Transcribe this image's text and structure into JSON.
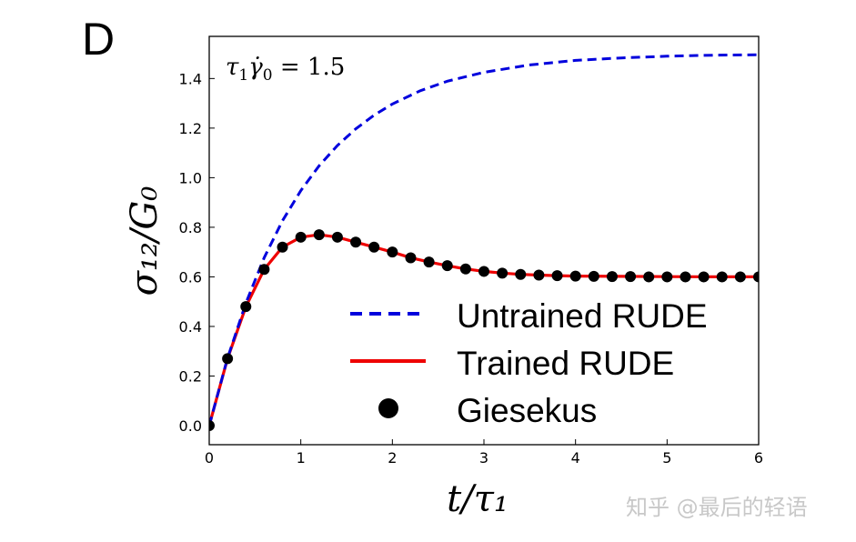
{
  "panel_label": "D",
  "watermark": "知乎 @最后的轻语",
  "chart_data": {
    "type": "line",
    "title": "",
    "annotation": "τ₁γ̇₀ = 1.5",
    "xlabel": "t/τ₁",
    "ylabel": "σ₁₂/G₀",
    "xlim": [
      0,
      6
    ],
    "ylim": [
      -0.077,
      1.57
    ],
    "xticks": [
      0,
      1,
      2,
      3,
      4,
      5,
      6
    ],
    "xtick_labels": [
      "0",
      "1",
      "2",
      "3",
      "4",
      "5",
      "6"
    ],
    "yticks": [
      0.0,
      0.2,
      0.4,
      0.6,
      0.8,
      1.0,
      1.2,
      1.4
    ],
    "ytick_labels": [
      "0.0",
      "0.2",
      "0.4",
      "0.6",
      "0.8",
      "1.0",
      "1.2",
      "1.4"
    ],
    "grid": false,
    "legend_position": "center-right",
    "colors": {
      "untrained": "#0000dd",
      "trained": "#ee0000",
      "giesekus": "#000000"
    },
    "series": [
      {
        "name": "Untrained RUDE",
        "style": "dashed",
        "x": [
          0,
          0.2,
          0.4,
          0.6,
          0.8,
          1.0,
          1.2,
          1.4,
          1.6,
          1.8,
          2.0,
          2.3,
          2.6,
          3.0,
          3.5,
          4.0,
          4.5,
          5.0,
          5.5,
          6.0
        ],
        "y": [
          0,
          0.272,
          0.494,
          0.677,
          0.826,
          0.948,
          1.048,
          1.13,
          1.197,
          1.252,
          1.297,
          1.35,
          1.389,
          1.425,
          1.455,
          1.473,
          1.483,
          1.49,
          1.494,
          1.496
        ]
      },
      {
        "name": "Trained RUDE",
        "style": "solid",
        "x": [
          0,
          0.2,
          0.4,
          0.6,
          0.8,
          1.0,
          1.2,
          1.4,
          1.6,
          1.8,
          2.0,
          2.2,
          2.4,
          2.6,
          2.8,
          3.0,
          3.2,
          3.4,
          3.6,
          3.8,
          4.0,
          4.5,
          5.0,
          5.5,
          6.0
        ],
        "y": [
          0,
          0.27,
          0.48,
          0.63,
          0.72,
          0.76,
          0.77,
          0.76,
          0.74,
          0.72,
          0.7,
          0.677,
          0.66,
          0.645,
          0.632,
          0.622,
          0.615,
          0.61,
          0.607,
          0.605,
          0.603,
          0.602,
          0.601,
          0.6,
          0.6
        ]
      },
      {
        "name": "Giesekus",
        "style": "markers",
        "x": [
          0,
          0.2,
          0.4,
          0.6,
          0.8,
          1.0,
          1.2,
          1.4,
          1.6,
          1.8,
          2.0,
          2.2,
          2.4,
          2.6,
          2.8,
          3.0,
          3.2,
          3.4,
          3.6,
          3.8,
          4.0,
          4.2,
          4.4,
          4.6,
          4.8,
          5.0,
          5.2,
          5.4,
          5.6,
          5.8,
          6.0
        ],
        "y": [
          0,
          0.27,
          0.48,
          0.63,
          0.72,
          0.76,
          0.77,
          0.76,
          0.74,
          0.72,
          0.7,
          0.677,
          0.66,
          0.645,
          0.632,
          0.622,
          0.615,
          0.61,
          0.607,
          0.605,
          0.603,
          0.602,
          0.601,
          0.601,
          0.6,
          0.6,
          0.6,
          0.6,
          0.6,
          0.6,
          0.6
        ]
      }
    ]
  }
}
